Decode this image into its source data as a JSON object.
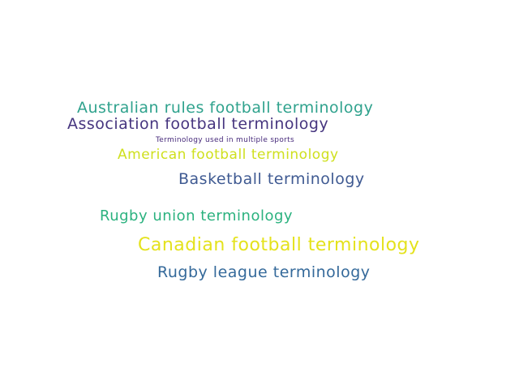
{
  "words": [
    {
      "id": "w1",
      "name": "word-australian-rules-football",
      "text": "Australian rules football terminology",
      "color": "#2fa28d"
    },
    {
      "id": "w2",
      "name": "word-association-football",
      "text": "Association football terminology",
      "color": "#46357f"
    },
    {
      "id": "w3",
      "name": "word-multiple-sports",
      "text": "Terminology used in multiple sports",
      "color": "#46297a"
    },
    {
      "id": "w4",
      "name": "word-american-football",
      "text": "American football terminology",
      "color": "#cfe01e"
    },
    {
      "id": "w5",
      "name": "word-basketball",
      "text": "Basketball terminology",
      "color": "#3f5a92"
    },
    {
      "id": "w6",
      "name": "word-rugby-union",
      "text": "Rugby union terminology",
      "color": "#2bb27f"
    },
    {
      "id": "w7",
      "name": "word-canadian-football",
      "text": "Canadian football terminology",
      "color": "#e4e21c"
    },
    {
      "id": "w8",
      "name": "word-rugby-league",
      "text": "Rugby league terminology",
      "color": "#34699a"
    }
  ]
}
